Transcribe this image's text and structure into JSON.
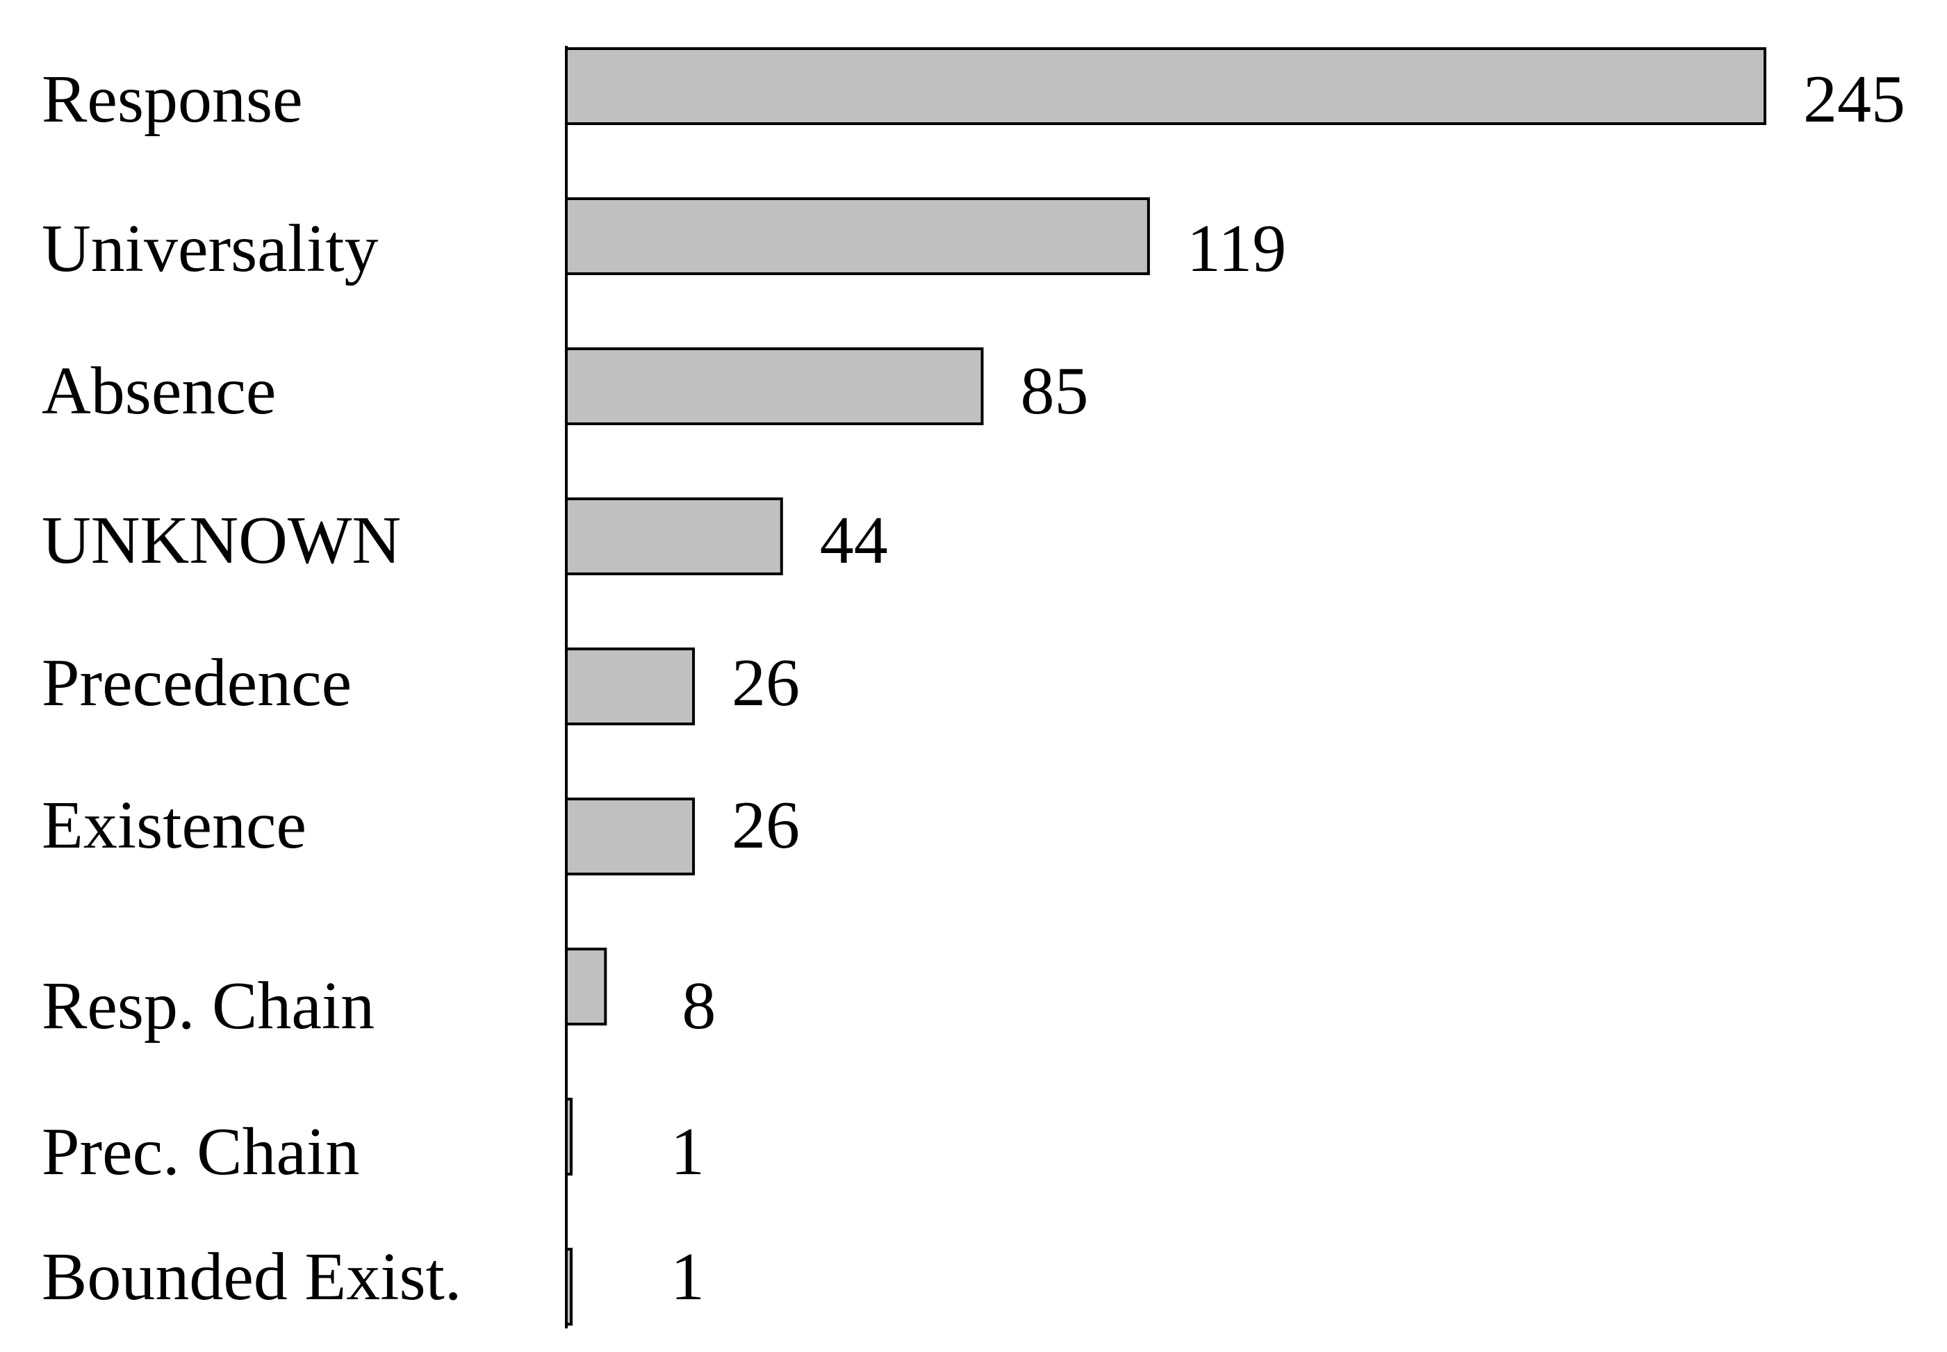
{
  "chart_data": {
    "type": "bar",
    "orientation": "horizontal",
    "categories": [
      "Response",
      "Universality",
      "Absence",
      "UNKNOWN",
      "Precedence",
      "Existence",
      "Resp. Chain",
      "Prec. Chain",
      "Bounded Exist."
    ],
    "values": [
      245,
      119,
      85,
      44,
      26,
      26,
      8,
      1,
      1
    ],
    "value_labels": [
      "245",
      "119",
      "85",
      "44",
      "26",
      "26",
      "8",
      "1",
      "1"
    ],
    "title": "",
    "xlabel": "",
    "ylabel": "",
    "xlim": [
      0,
      245
    ],
    "grid": false,
    "legend": "none",
    "colors": {
      "bar_fill": "#c0c0c0",
      "bar_stroke": "#000000",
      "axis": "#000000",
      "text": "#000000"
    }
  }
}
